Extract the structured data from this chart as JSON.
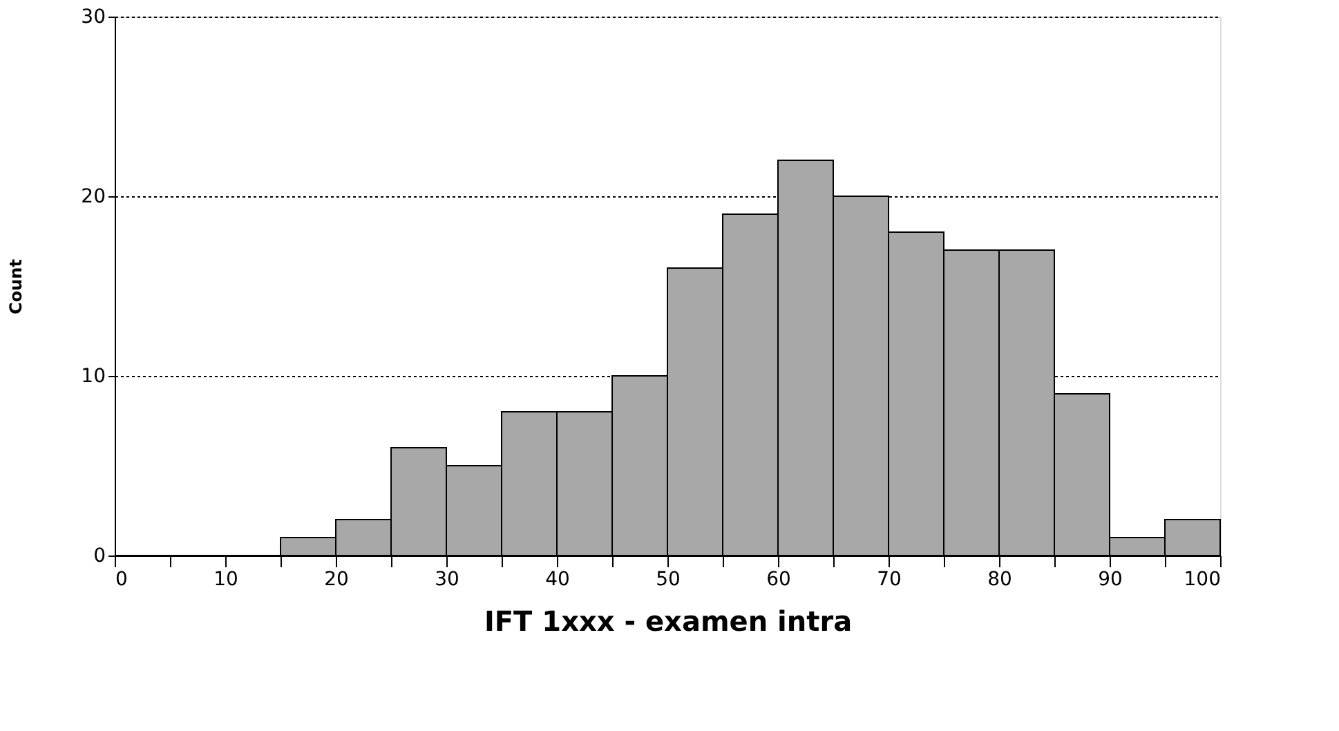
{
  "chart_data": {
    "type": "histogram",
    "xlabel": "IFT 1xxx - examen intra",
    "ylabel": "Count",
    "bins": [
      0,
      5,
      10,
      15,
      20,
      25,
      30,
      35,
      40,
      45,
      50,
      55,
      60,
      65,
      70,
      75,
      80,
      85,
      90,
      95,
      100
    ],
    "values": [
      0,
      0,
      0,
      1,
      2,
      6,
      5,
      8,
      8,
      10,
      16,
      19,
      22,
      20,
      18,
      17,
      17,
      9,
      1,
      2
    ],
    "color": "#a8a8a8",
    "xlim": [
      0,
      100
    ],
    "xticks": [
      0,
      {
        "value": 5,
        "label": null
      },
      10,
      {
        "value": 15,
        "label": null
      },
      20,
      {
        "value": 25,
        "label": null
      },
      30,
      {
        "value": 35,
        "label": null
      },
      40,
      {
        "value": 45,
        "label": null
      },
      50,
      {
        "value": 55,
        "label": null
      },
      60,
      {
        "value": 65,
        "label": null
      },
      70,
      {
        "value": 75,
        "label": null
      },
      80,
      {
        "value": 85,
        "label": null
      },
      90,
      {
        "value": 95,
        "label": null
      },
      100
    ],
    "ylim": [
      0,
      30
    ],
    "yticks": [
      0,
      10,
      20,
      30
    ],
    "grid": "y",
    "line_style": "dotted"
  }
}
